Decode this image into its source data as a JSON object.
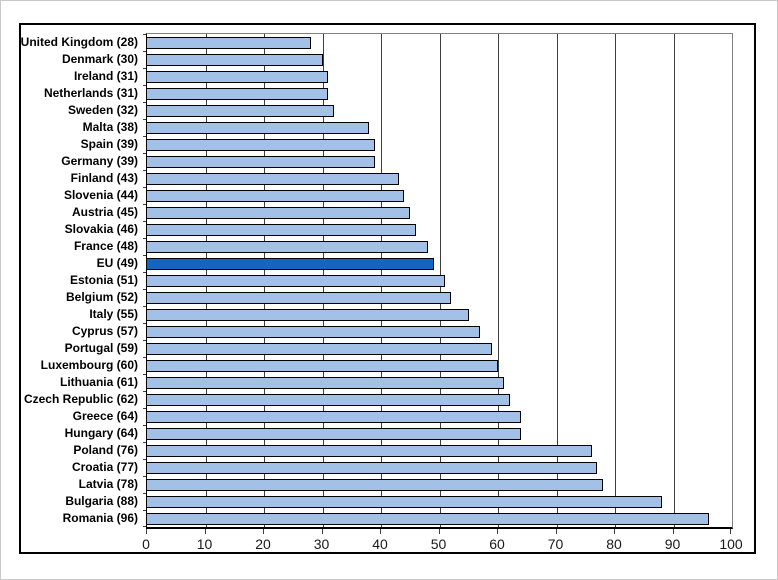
{
  "chart_data": {
    "type": "bar",
    "orientation": "horizontal",
    "title": "",
    "xlabel": "",
    "ylabel": "",
    "categories": [
      "United Kingdom",
      "Denmark",
      "Ireland",
      "Netherlands",
      "Sweden",
      "Malta",
      "Spain",
      "Germany",
      "Finland",
      "Slovenia",
      "Austria",
      "Slovakia",
      "France",
      "EU",
      "Estonia",
      "Belgium",
      "Italy",
      "Cyprus",
      "Portugal",
      "Luxembourg",
      "Lithuania",
      "Czech Republic",
      "Greece",
      "Hungary",
      "Poland",
      "Croatia",
      "Latvia",
      "Bulgaria",
      "Romania"
    ],
    "values": [
      28,
      30,
      31,
      31,
      32,
      38,
      39,
      39,
      43,
      44,
      45,
      46,
      48,
      49,
      51,
      52,
      55,
      57,
      59,
      60,
      61,
      62,
      64,
      64,
      76,
      77,
      78,
      88,
      96
    ],
    "label_format": "{category} ({value})",
    "highlight_category": "EU",
    "highlight_index": 13,
    "xlim": [
      0,
      100
    ],
    "x_ticks": [
      0,
      10,
      20,
      30,
      40,
      50,
      60,
      70,
      80,
      90,
      100
    ],
    "grid": "vertical-major",
    "legend": "none",
    "colors": {
      "bar_fill": "#A3C1E6",
      "bar_highlight_fill": "#1565C0",
      "bar_border": "#000000",
      "gridline": "#3F3F3F",
      "plot_border": "#808080",
      "axis_line": "#000000",
      "chart_border": "#000000",
      "background": "#FFFFFF",
      "label_text": "#000000"
    }
  }
}
